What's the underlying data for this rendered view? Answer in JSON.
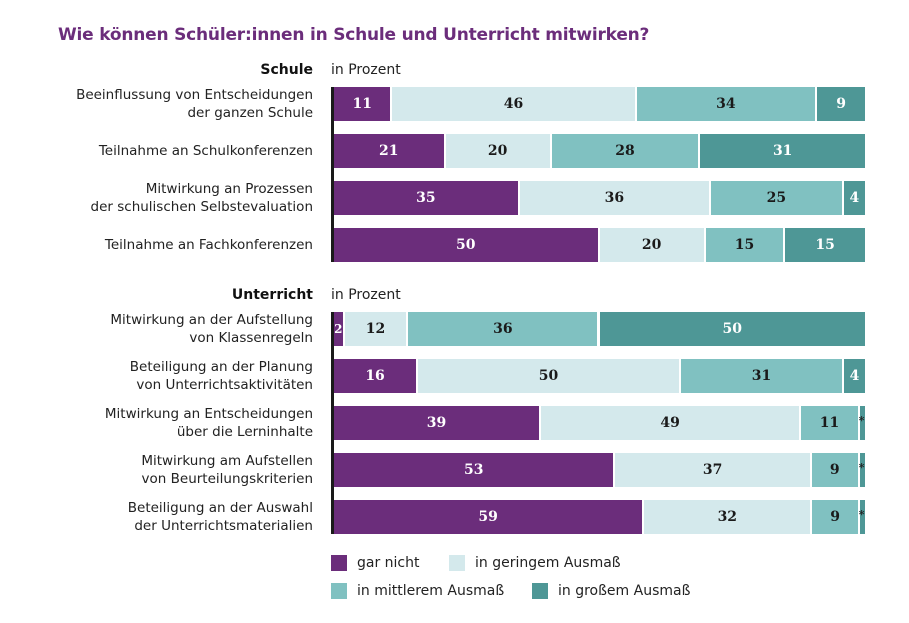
{
  "title": "Wie können Schüler:innen in Schule und Unterricht mitwirken?",
  "colors": {
    "gar_nicht": "#6b2d7b",
    "geringem": "#d4e9ec",
    "mittlerem": "#80c1c1",
    "grossem": "#4e9796",
    "label_dark": "#1a1a1a",
    "label_light": "#ffffff"
  },
  "chart_data": {
    "type": "bar",
    "orientation": "horizontal-stacked-100",
    "title": "Wie können Schüler:innen in Schule und Unterricht mitwirken?",
    "unit_label": "in Prozent",
    "xlim": [
      0,
      100
    ],
    "legend": [
      "gar nicht",
      "in geringem Ausmaß",
      "in mittlerem Ausmaß",
      "in großem Ausmaß"
    ],
    "legend_position": "bottom",
    "groups": [
      {
        "name": "Schule",
        "unit_label": "in Prozent",
        "categories": [
          [
            "Beeinflussung von Entscheidungen",
            "der ganzen Schule"
          ],
          [
            "Teilnahme an Schulkonferenzen"
          ],
          [
            "Mitwirkung an Prozessen",
            "der schulischen Selbstevaluation"
          ],
          [
            "Teilnahme an Fachkonferenzen"
          ]
        ],
        "series": [
          {
            "name": "gar nicht",
            "values": [
              11,
              21,
              35,
              50
            ]
          },
          {
            "name": "in geringem Ausmaß",
            "values": [
              46,
              20,
              36,
              20
            ]
          },
          {
            "name": "in mittlerem Ausmaß",
            "values": [
              34,
              28,
              25,
              15
            ]
          },
          {
            "name": "in großem Ausmaß",
            "values": [
              9,
              31,
              4,
              15
            ]
          }
        ]
      },
      {
        "name": "Unterricht",
        "unit_label": "in Prozent",
        "categories": [
          [
            "Mitwirkung an der Aufstellung",
            "von Klassenregeln"
          ],
          [
            "Beteiligung an der Planung",
            "von Unterrichtsaktivitäten"
          ],
          [
            "Mitwirkung an Entscheidungen",
            "über die Lerninhalte"
          ],
          [
            "Mitwirkung am Aufstellen",
            "von Beurteilungskriterien"
          ],
          [
            "Beteiligung an der Auswahl",
            "der Unterrichtsmaterialien"
          ]
        ],
        "series": [
          {
            "name": "gar nicht",
            "values": [
              2,
              16,
              39,
              53,
              59
            ]
          },
          {
            "name": "in geringem Ausmaß",
            "values": [
              12,
              50,
              49,
              37,
              32
            ]
          },
          {
            "name": "in mittlerem Ausmaß",
            "values": [
              36,
              31,
              11,
              9,
              9
            ]
          },
          {
            "name": "in großem Ausmaß",
            "values": [
              50,
              4,
              1,
              1,
              1
            ]
          }
        ],
        "value_labels_override": {
          "in großem Ausmaß": [
            "50",
            "4",
            "*",
            "*",
            "*"
          ]
        }
      }
    ]
  },
  "legend_labels": [
    "gar nicht",
    "in geringem Ausmaß",
    "in mittlerem Ausmaß",
    "in großem Ausmaß"
  ]
}
